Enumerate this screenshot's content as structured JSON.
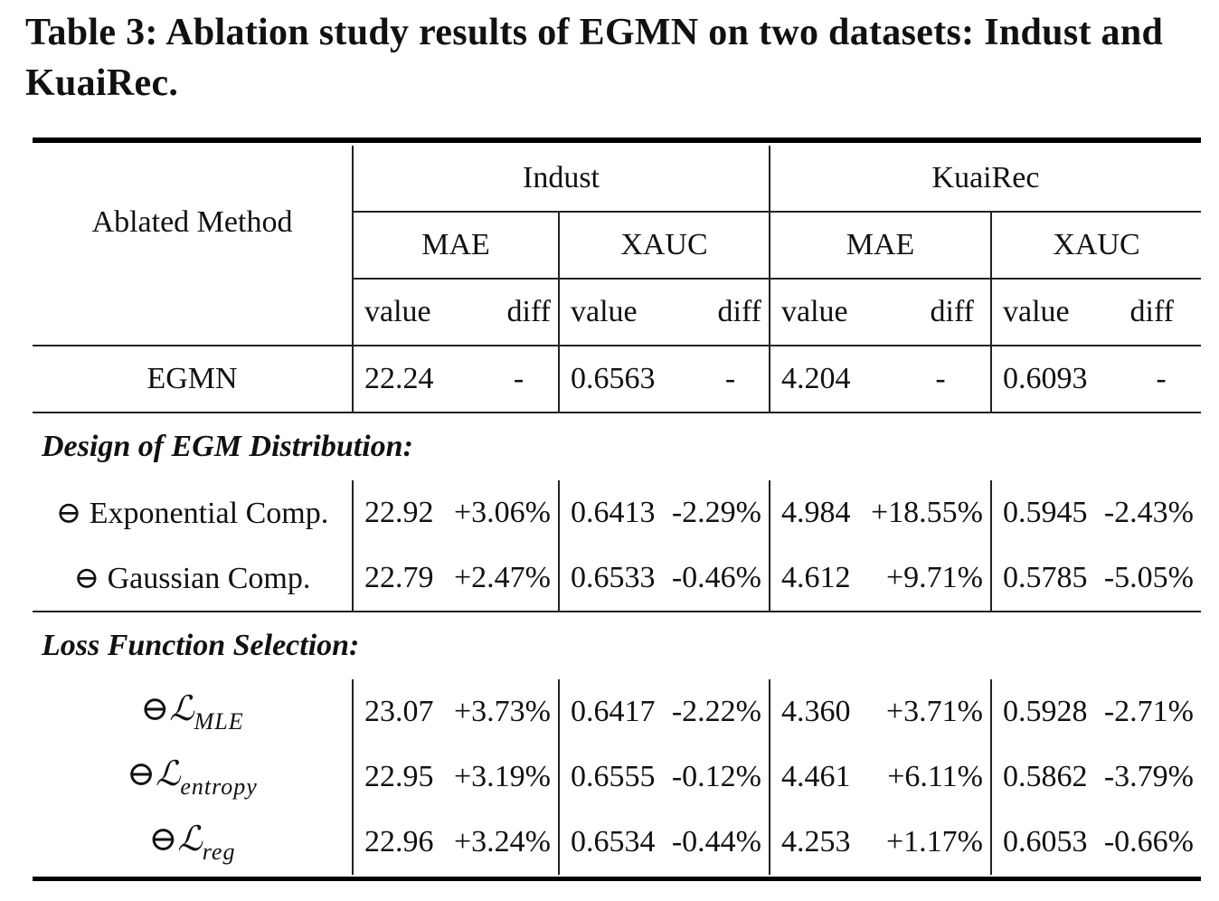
{
  "caption": "Table 3: Ablation study results of EGMN on two datasets: Indust and KuaiRec.",
  "header": {
    "method": "Ablated Method",
    "datasets": [
      "Indust",
      "KuaiRec"
    ],
    "metrics": [
      "MAE",
      "XAUC",
      "MAE",
      "XAUC"
    ],
    "sub": [
      "value",
      "diff",
      "value",
      "diff",
      "value",
      "diff",
      "value",
      "diff"
    ]
  },
  "baseline": {
    "method": "EGMN",
    "cells": [
      "22.24",
      "-",
      "0.6563",
      "-",
      "4.204",
      "-",
      "0.6093",
      "-"
    ]
  },
  "sections": [
    {
      "title": "Design of EGM Distribution:",
      "rows": [
        {
          "method": "⊖ Exponential Comp.",
          "cells": [
            "22.92",
            "+3.06%",
            "0.6413",
            "-2.29%",
            "4.984",
            "+18.55%",
            "0.5945",
            "-2.43%"
          ]
        },
        {
          "method": "⊖ Gaussian Comp.",
          "cells": [
            "22.79",
            "+2.47%",
            "0.6533",
            "-0.46%",
            "4.612",
            "+9.71%",
            "0.5785",
            "-5.05%"
          ]
        }
      ]
    },
    {
      "title": "Loss Function Selection:",
      "rows": [
        {
          "method": "⊖ℒ",
          "subscript": "MLE",
          "cells": [
            "23.07",
            "+3.73%",
            "0.6417",
            "-2.22%",
            "4.360",
            "+3.71%",
            "0.5928",
            "-2.71%"
          ]
        },
        {
          "method": "⊖ℒ",
          "subscript": "entropy",
          "cells": [
            "22.95",
            "+3.19%",
            "0.6555",
            "-0.12%",
            "4.461",
            "+6.11%",
            "0.5862",
            "-3.79%"
          ]
        },
        {
          "method": "⊖ℒ",
          "subscript": "reg",
          "cells": [
            "22.96",
            "+3.24%",
            "0.6534",
            "-0.44%",
            "4.253",
            "+1.17%",
            "0.6053",
            "-0.66%"
          ]
        }
      ]
    }
  ]
}
